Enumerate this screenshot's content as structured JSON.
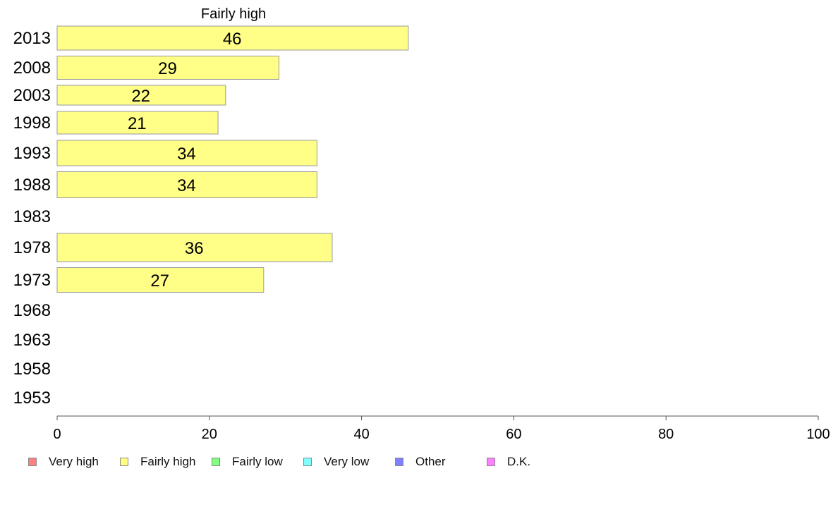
{
  "chart_data": {
    "type": "bar",
    "orientation": "horizontal",
    "title": "Fairly high",
    "categories": [
      "2013",
      "2008",
      "2003",
      "1998",
      "1993",
      "1988",
      "1983",
      "1978",
      "1973",
      "1968",
      "1963",
      "1958",
      "1953"
    ],
    "series": [
      {
        "name": "Fairly high",
        "values": [
          46,
          29,
          22,
          21,
          34,
          34,
          null,
          36,
          27,
          null,
          null,
          null,
          null
        ],
        "color": "#ffff88"
      }
    ],
    "data_labels": [
      "46",
      "29",
      "22",
      "21",
      "34",
      "34",
      "",
      "36",
      "27",
      "",
      "",
      "",
      ""
    ],
    "xlim": [
      0,
      100
    ],
    "xticks": [
      "0",
      "20",
      "40",
      "60",
      "80",
      "100"
    ],
    "grid": false,
    "legend_position": "bottom",
    "legend": [
      {
        "label": "Very high",
        "color": "#ff8080"
      },
      {
        "label": "Fairly high",
        "color": "#ffff80"
      },
      {
        "label": "Fairly low",
        "color": "#80ff80"
      },
      {
        "label": "Very low",
        "color": "#80ffff"
      },
      {
        "label": "Other",
        "color": "#8080ff"
      },
      {
        "label": "D.K.",
        "color": "#ff80ff"
      }
    ]
  }
}
